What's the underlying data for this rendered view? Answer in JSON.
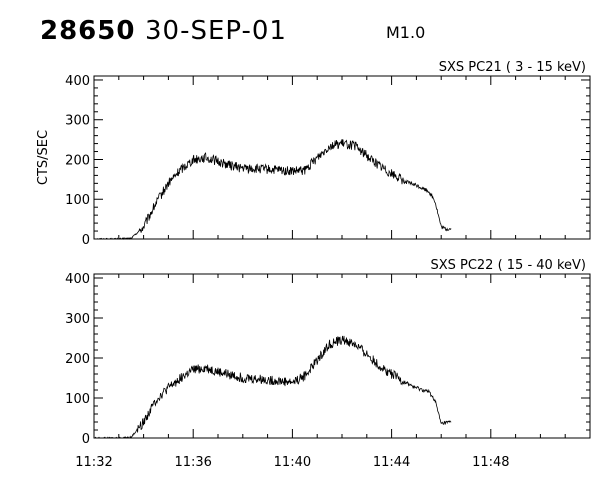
{
  "header": {
    "event_id": "28650",
    "date": "30-SEP-01",
    "flare_class": "M1.0"
  },
  "chart_data": [
    {
      "type": "line",
      "title": "SXS PC21  (  3 - 15 keV)",
      "xlabel": "",
      "ylabel": "CTS/SEC",
      "ylim": [
        0,
        410
      ],
      "xlim": [
        "11:32",
        "11:52"
      ],
      "yticks": [
        0,
        100,
        200,
        300,
        400
      ],
      "xticks": [
        "11:32",
        "11:36",
        "11:40",
        "11:44",
        "11:48"
      ],
      "grid": false,
      "series": [
        {
          "x": [
            "11:32",
            "11:33",
            "11:33:30",
            "11:34",
            "11:34:30",
            "11:35",
            "11:35:30",
            "11:36",
            "11:36:30",
            "11:37",
            "11:37:30",
            "11:38",
            "11:39",
            "11:40",
            "11:40:30",
            "11:41",
            "11:41:30",
            "11:42",
            "11:42:30",
            "11:43",
            "11:43:30",
            "11:44",
            "11:44:30",
            "11:45",
            "11:45:30",
            "11:45:45",
            "11:46",
            "11:46:10",
            "11:46:25"
          ],
          "y": [
            0,
            0,
            2,
            30,
            90,
            140,
            175,
            200,
            205,
            195,
            185,
            178,
            175,
            170,
            172,
            205,
            235,
            240,
            235,
            210,
            185,
            165,
            145,
            135,
            120,
            95,
            30,
            25,
            25
          ],
          "noise": 12
        }
      ]
    },
    {
      "type": "line",
      "title": "SXS PC22  ( 15 - 40 keV)",
      "xlabel": "",
      "ylabel": "",
      "ylim": [
        0,
        410
      ],
      "xlim": [
        "11:32",
        "11:52"
      ],
      "yticks": [
        0,
        100,
        200,
        300,
        400
      ],
      "xticks": [
        "11:32",
        "11:36",
        "11:40",
        "11:44",
        "11:48"
      ],
      "grid": false,
      "series": [
        {
          "x": [
            "11:32",
            "11:33",
            "11:33:30",
            "11:34",
            "11:34:30",
            "11:35",
            "11:35:30",
            "11:36",
            "11:36:30",
            "11:37",
            "11:37:30",
            "11:38",
            "11:39",
            "11:40",
            "11:40:30",
            "11:41",
            "11:41:30",
            "11:42",
            "11:42:30",
            "11:43",
            "11:43:30",
            "11:44",
            "11:44:30",
            "11:45",
            "11:45:30",
            "11:45:45",
            "11:46",
            "11:46:10",
            "11:46:25"
          ],
          "y": [
            0,
            0,
            2,
            40,
            95,
            125,
            150,
            170,
            175,
            165,
            158,
            150,
            145,
            140,
            155,
            195,
            235,
            245,
            235,
            210,
            180,
            160,
            140,
            125,
            115,
            95,
            35,
            38,
            40
          ],
          "noise": 12
        }
      ]
    }
  ]
}
